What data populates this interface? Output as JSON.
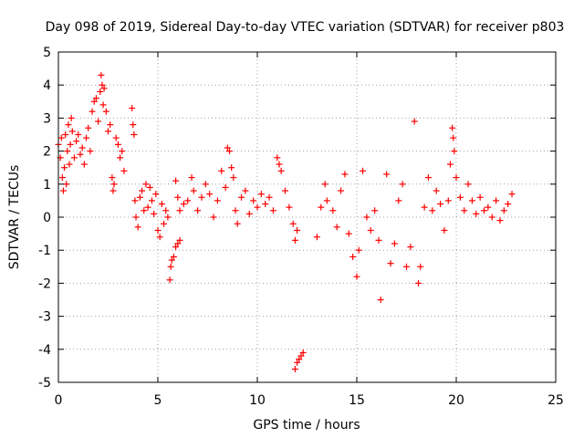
{
  "chart_data": {
    "type": "scatter",
    "title": "Day 098 of 2019, Sidereal Day-to-day VTEC variation (SDTVAR) for receiver p803",
    "xlabel": "GPS time / hours",
    "ylabel": "SDTVAR / TECUs",
    "xlim": [
      0,
      25
    ],
    "ylim": [
      -5,
      5
    ],
    "x_ticks": [
      "0",
      "5",
      "10",
      "15",
      "20",
      "25"
    ],
    "y_ticks": [
      "-5",
      "-4",
      "-3",
      "-2",
      "-1",
      "0",
      "1",
      "2",
      "3",
      "4",
      "5"
    ],
    "grid": true,
    "marker": "+",
    "color": "#ff0000",
    "series": [
      {
        "name": "SDTVAR",
        "points": [
          [
            0.0,
            2.2
          ],
          [
            0.1,
            1.8
          ],
          [
            0.15,
            2.4
          ],
          [
            0.2,
            1.2
          ],
          [
            0.25,
            0.8
          ],
          [
            0.3,
            1.5
          ],
          [
            0.35,
            2.5
          ],
          [
            0.4,
            1.0
          ],
          [
            0.45,
            2.0
          ],
          [
            0.5,
            2.8
          ],
          [
            0.55,
            1.6
          ],
          [
            0.6,
            2.2
          ],
          [
            0.65,
            3.0
          ],
          [
            0.7,
            2.6
          ],
          [
            0.8,
            1.8
          ],
          [
            0.9,
            2.3
          ],
          [
            1.0,
            2.5
          ],
          [
            1.1,
            1.9
          ],
          [
            1.2,
            2.1
          ],
          [
            1.3,
            1.6
          ],
          [
            1.4,
            2.4
          ],
          [
            1.5,
            2.7
          ],
          [
            1.6,
            2.0
          ],
          [
            1.7,
            3.2
          ],
          [
            1.8,
            3.5
          ],
          [
            1.9,
            3.6
          ],
          [
            2.0,
            2.9
          ],
          [
            2.1,
            3.8
          ],
          [
            2.15,
            4.3
          ],
          [
            2.2,
            4.0
          ],
          [
            2.25,
            3.4
          ],
          [
            2.3,
            3.9
          ],
          [
            2.4,
            3.2
          ],
          [
            2.5,
            2.6
          ],
          [
            2.6,
            2.8
          ],
          [
            2.7,
            1.2
          ],
          [
            2.75,
            0.8
          ],
          [
            2.8,
            1.0
          ],
          [
            2.9,
            2.4
          ],
          [
            3.0,
            2.2
          ],
          [
            3.1,
            1.8
          ],
          [
            3.2,
            2.0
          ],
          [
            3.3,
            1.4
          ],
          [
            3.7,
            3.3
          ],
          [
            3.75,
            2.8
          ],
          [
            3.8,
            2.5
          ],
          [
            3.85,
            0.5
          ],
          [
            3.9,
            0.0
          ],
          [
            4.0,
            -0.3
          ],
          [
            4.1,
            0.6
          ],
          [
            4.2,
            0.8
          ],
          [
            4.3,
            0.2
          ],
          [
            4.4,
            1.0
          ],
          [
            4.5,
            0.3
          ],
          [
            4.6,
            0.9
          ],
          [
            4.7,
            0.5
          ],
          [
            4.8,
            0.1
          ],
          [
            4.9,
            0.7
          ],
          [
            5.0,
            -0.4
          ],
          [
            5.1,
            -0.6
          ],
          [
            5.2,
            0.4
          ],
          [
            5.3,
            -0.2
          ],
          [
            5.4,
            0.2
          ],
          [
            5.5,
            0.0
          ],
          [
            5.6,
            -1.9
          ],
          [
            5.65,
            -1.5
          ],
          [
            5.7,
            -1.3
          ],
          [
            5.8,
            -1.2
          ],
          [
            5.9,
            -0.9
          ],
          [
            6.0,
            -0.8
          ],
          [
            6.1,
            -0.7
          ],
          [
            5.9,
            1.1
          ],
          [
            6.0,
            0.6
          ],
          [
            6.1,
            0.2
          ],
          [
            6.3,
            0.4
          ],
          [
            6.5,
            0.5
          ],
          [
            6.7,
            1.2
          ],
          [
            6.8,
            0.8
          ],
          [
            7.0,
            0.2
          ],
          [
            7.2,
            0.6
          ],
          [
            7.4,
            1.0
          ],
          [
            7.6,
            0.7
          ],
          [
            7.8,
            0.0
          ],
          [
            8.0,
            0.5
          ],
          [
            8.2,
            1.4
          ],
          [
            8.4,
            0.9
          ],
          [
            8.5,
            2.1
          ],
          [
            8.6,
            2.0
          ],
          [
            8.7,
            1.5
          ],
          [
            8.8,
            1.2
          ],
          [
            8.9,
            0.2
          ],
          [
            9.0,
            -0.2
          ],
          [
            9.2,
            0.6
          ],
          [
            9.4,
            0.8
          ],
          [
            9.6,
            0.1
          ],
          [
            9.8,
            0.5
          ],
          [
            10.0,
            0.3
          ],
          [
            10.2,
            0.7
          ],
          [
            10.4,
            0.4
          ],
          [
            10.6,
            0.6
          ],
          [
            10.8,
            0.2
          ],
          [
            11.0,
            1.8
          ],
          [
            11.1,
            1.6
          ],
          [
            11.2,
            1.4
          ],
          [
            11.4,
            0.8
          ],
          [
            11.6,
            0.3
          ],
          [
            11.8,
            -0.2
          ],
          [
            11.9,
            -0.7
          ],
          [
            12.0,
            -0.4
          ],
          [
            11.9,
            -4.6
          ],
          [
            12.0,
            -4.4
          ],
          [
            12.1,
            -4.3
          ],
          [
            12.2,
            -4.2
          ],
          [
            12.3,
            -4.1
          ],
          [
            13.0,
            -0.6
          ],
          [
            13.2,
            0.3
          ],
          [
            13.4,
            1.0
          ],
          [
            13.5,
            0.5
          ],
          [
            13.8,
            0.2
          ],
          [
            14.0,
            -0.3
          ],
          [
            14.2,
            0.8
          ],
          [
            14.4,
            1.3
          ],
          [
            14.6,
            -0.5
          ],
          [
            14.8,
            -1.2
          ],
          [
            15.0,
            -1.8
          ],
          [
            15.1,
            -1.0
          ],
          [
            15.3,
            1.4
          ],
          [
            15.5,
            0.0
          ],
          [
            15.7,
            -0.4
          ],
          [
            15.9,
            0.2
          ],
          [
            16.1,
            -0.7
          ],
          [
            16.2,
            -2.5
          ],
          [
            16.5,
            1.3
          ],
          [
            16.7,
            -1.4
          ],
          [
            16.9,
            -0.8
          ],
          [
            17.1,
            0.5
          ],
          [
            17.3,
            1.0
          ],
          [
            17.5,
            -1.5
          ],
          [
            17.7,
            -0.9
          ],
          [
            17.9,
            2.9
          ],
          [
            18.1,
            -2.0
          ],
          [
            18.2,
            -1.5
          ],
          [
            18.4,
            0.3
          ],
          [
            18.6,
            1.2
          ],
          [
            18.8,
            0.2
          ],
          [
            19.0,
            0.8
          ],
          [
            19.2,
            0.4
          ],
          [
            19.4,
            -0.4
          ],
          [
            19.6,
            0.5
          ],
          [
            19.7,
            1.6
          ],
          [
            19.8,
            2.7
          ],
          [
            19.85,
            2.4
          ],
          [
            19.9,
            2.0
          ],
          [
            20.0,
            1.2
          ],
          [
            20.2,
            0.6
          ],
          [
            20.4,
            0.2
          ],
          [
            20.6,
            1.0
          ],
          [
            20.8,
            0.5
          ],
          [
            21.0,
            0.1
          ],
          [
            21.2,
            0.6
          ],
          [
            21.4,
            0.2
          ],
          [
            21.6,
            0.3
          ],
          [
            21.8,
            0.0
          ],
          [
            22.0,
            0.5
          ],
          [
            22.2,
            -0.1
          ],
          [
            22.4,
            0.2
          ],
          [
            22.6,
            0.4
          ],
          [
            22.8,
            0.7
          ]
        ]
      }
    ]
  }
}
